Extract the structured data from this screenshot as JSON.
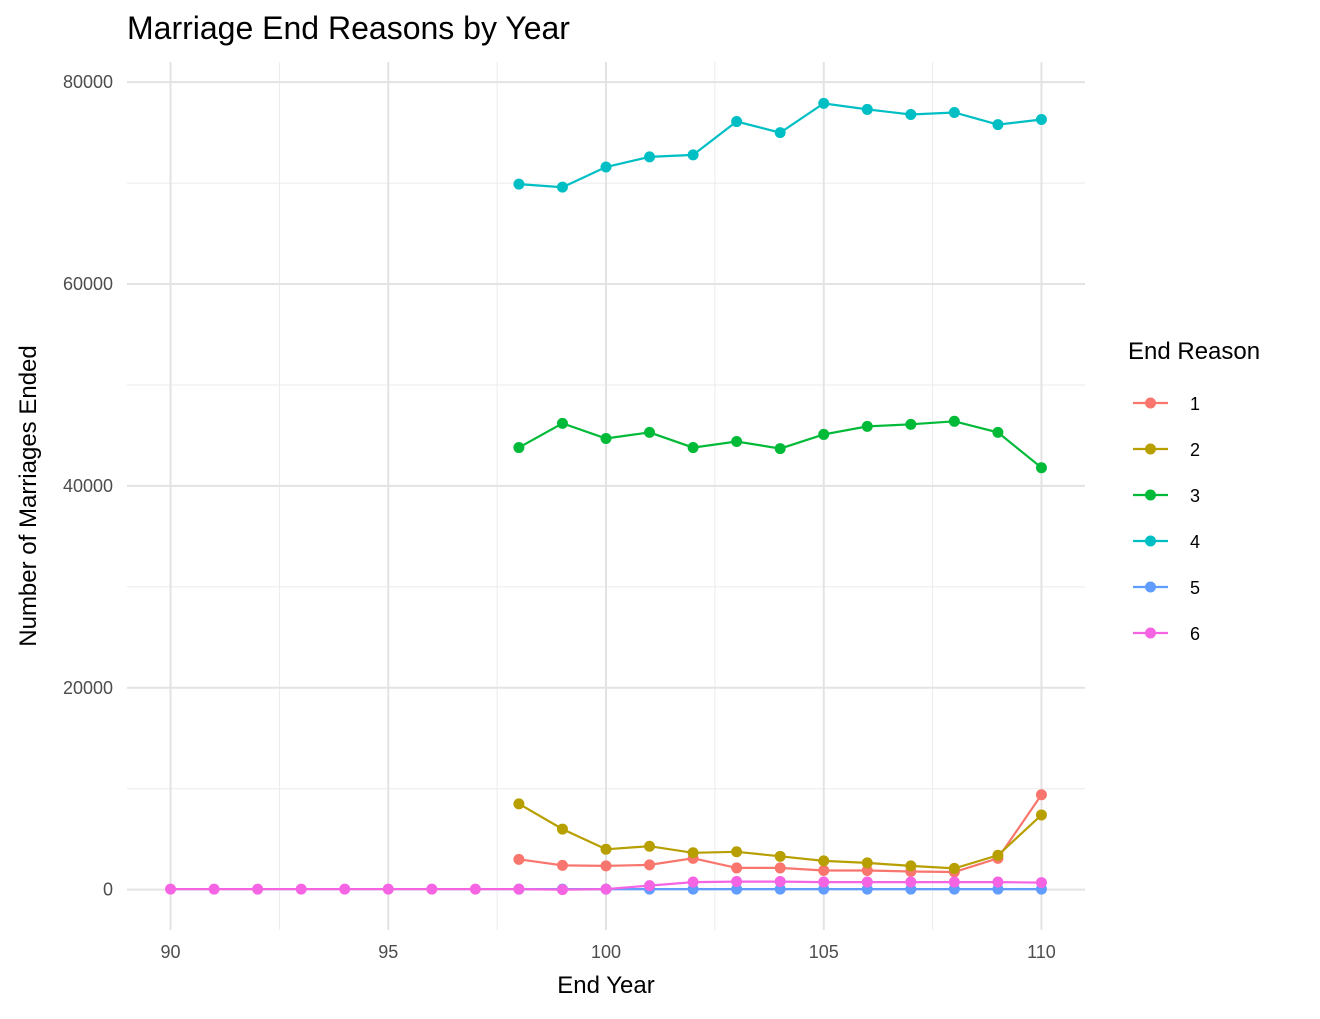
{
  "chart_data": {
    "type": "line",
    "title": "Marriage End Reasons by Year",
    "xlabel": "End Year",
    "ylabel": "Number of Marriages Ended",
    "xlim": [
      89,
      111
    ],
    "ylim": [
      -4000,
      82000
    ],
    "xticks": [
      90,
      95,
      100,
      105,
      110
    ],
    "yticks": [
      0,
      20000,
      40000,
      60000,
      80000
    ],
    "grid": true,
    "legend": {
      "title": "End Reason",
      "position": "right"
    },
    "series": [
      {
        "name": "1",
        "color": "#F8766D",
        "points": [
          [
            98,
            3000
          ],
          [
            99,
            2400
          ],
          [
            100,
            2350
          ],
          [
            101,
            2450
          ],
          [
            102,
            3100
          ],
          [
            103,
            2150
          ],
          [
            104,
            2150
          ],
          [
            105,
            1900
          ],
          [
            106,
            1900
          ],
          [
            107,
            1800
          ],
          [
            108,
            1750
          ],
          [
            109,
            3100
          ],
          [
            110,
            9400
          ]
        ]
      },
      {
        "name": "2",
        "color": "#B79F00",
        "points": [
          [
            98,
            8500
          ],
          [
            99,
            6000
          ],
          [
            100,
            4000
          ],
          [
            101,
            4300
          ],
          [
            102,
            3650
          ],
          [
            103,
            3750
          ],
          [
            104,
            3300
          ],
          [
            105,
            2850
          ],
          [
            106,
            2650
          ],
          [
            107,
            2350
          ],
          [
            108,
            2100
          ],
          [
            109,
            3400
          ],
          [
            110,
            7400
          ]
        ]
      },
      {
        "name": "3",
        "color": "#00BA38",
        "points": [
          [
            98,
            43800
          ],
          [
            99,
            46200
          ],
          [
            100,
            44700
          ],
          [
            101,
            45300
          ],
          [
            102,
            43800
          ],
          [
            103,
            44400
          ],
          [
            104,
            43700
          ],
          [
            105,
            45100
          ],
          [
            106,
            45900
          ],
          [
            107,
            46100
          ],
          [
            108,
            46400
          ],
          [
            109,
            45300
          ],
          [
            110,
            41800
          ]
        ]
      },
      {
        "name": "4",
        "color": "#00BFC4",
        "points": [
          [
            98,
            69900
          ],
          [
            99,
            69600
          ],
          [
            100,
            71600
          ],
          [
            101,
            72600
          ],
          [
            102,
            72800
          ],
          [
            103,
            76100
          ],
          [
            104,
            75000
          ],
          [
            105,
            77900
          ],
          [
            106,
            77300
          ],
          [
            107,
            76800
          ],
          [
            108,
            77000
          ],
          [
            109,
            75800
          ],
          [
            110,
            76300
          ]
        ]
      },
      {
        "name": "5",
        "color": "#619CFF",
        "points": [
          [
            98,
            50
          ],
          [
            99,
            50
          ],
          [
            100,
            50
          ],
          [
            101,
            50
          ],
          [
            102,
            50
          ],
          [
            103,
            50
          ],
          [
            104,
            50
          ],
          [
            105,
            50
          ],
          [
            106,
            50
          ],
          [
            107,
            50
          ],
          [
            108,
            50
          ],
          [
            109,
            50
          ],
          [
            110,
            50
          ]
        ]
      },
      {
        "name": "6",
        "color": "#F564E3",
        "points": [
          [
            90,
            50
          ],
          [
            91,
            50
          ],
          [
            92,
            50
          ],
          [
            93,
            50
          ],
          [
            94,
            50
          ],
          [
            95,
            50
          ],
          [
            96,
            50
          ],
          [
            97,
            50
          ],
          [
            98,
            50
          ],
          [
            99,
            0
          ],
          [
            100,
            50
          ],
          [
            101,
            400
          ],
          [
            102,
            750
          ],
          [
            103,
            800
          ],
          [
            104,
            800
          ],
          [
            105,
            750
          ],
          [
            106,
            750
          ],
          [
            107,
            750
          ],
          [
            108,
            750
          ],
          [
            109,
            750
          ],
          [
            110,
            700
          ]
        ]
      }
    ]
  }
}
